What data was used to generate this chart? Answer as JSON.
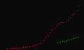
{
  "background_color": "#0a0a0a",
  "red_line": {
    "color": "#ff0000",
    "x": [
      1950,
      1952,
      1954,
      1956,
      1958,
      1960,
      1962,
      1964,
      1966,
      1968,
      1970,
      1972,
      1974,
      1976,
      1978,
      1980,
      1982,
      1984,
      1986,
      1988,
      1990,
      1992,
      1994,
      1996,
      1998,
      2000,
      2002,
      2004,
      2006,
      2008,
      2010,
      2012,
      2014
    ],
    "y": [
      0.2,
      0.22,
      0.25,
      0.28,
      0.32,
      0.37,
      0.43,
      0.5,
      0.58,
      0.68,
      0.8,
      0.95,
      1.13,
      1.35,
      1.6,
      1.9,
      2.6,
      3.4,
      4.2,
      5.0,
      5.83,
      6.5,
      7.2,
      7.7,
      8.0,
      8.0,
      8.3,
      8.9,
      9.5,
      10.3,
      10.7,
      11.7,
      13.2
    ]
  },
  "green_line": {
    "color": "#00bb00",
    "x": [
      1995,
      1997,
      1999,
      2001,
      2003,
      2005,
      2007,
      2009,
      2011,
      2013
    ],
    "y": [
      2.0,
      2.2,
      2.4,
      2.5,
      2.7,
      2.9,
      3.1,
      3.3,
      3.5,
      3.7
    ]
  },
  "xlim": [
    1945,
    2017
  ],
  "ylim": [
    0,
    14.5
  ],
  "markersize": 1.0,
  "linewidth": 0.0,
  "marker": "o"
}
